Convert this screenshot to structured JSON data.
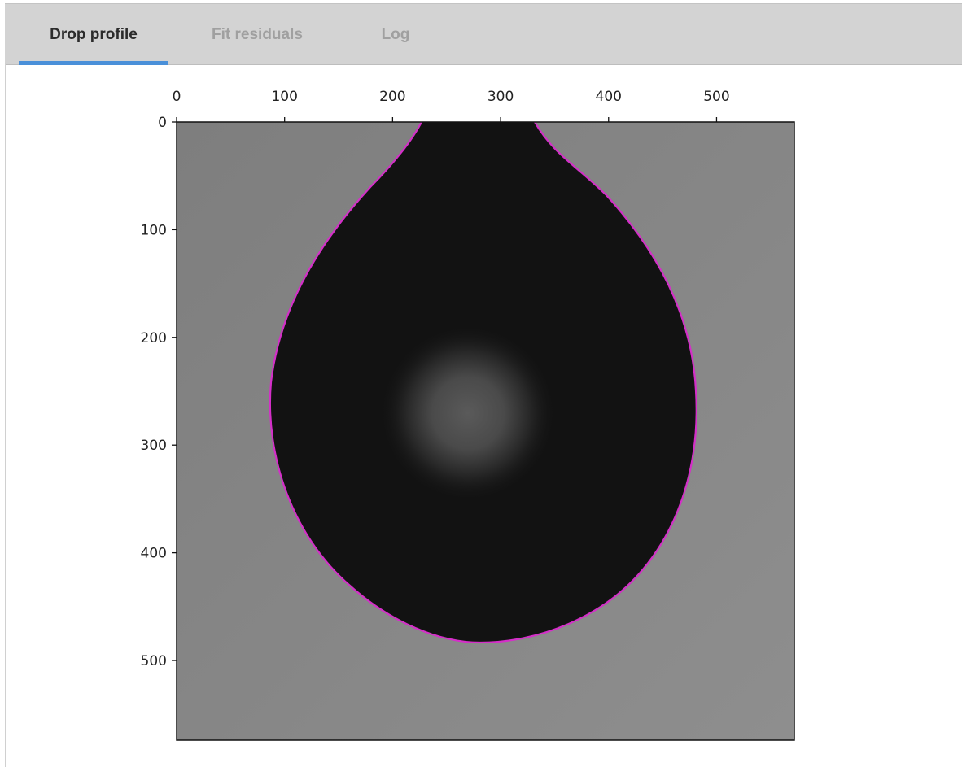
{
  "tabs": [
    {
      "label": "Drop profile",
      "active": true
    },
    {
      "label": "Fit residuals",
      "active": false
    },
    {
      "label": "Log",
      "active": false
    }
  ],
  "chart_data": {
    "type": "image",
    "xlim": [
      0,
      572
    ],
    "ylim": [
      0,
      574
    ],
    "y_inverted": true,
    "x_axis_position": "top",
    "xticks": [
      0,
      100,
      200,
      300,
      400,
      500
    ],
    "yticks": [
      0,
      100,
      200,
      300,
      400,
      500
    ]
  }
}
